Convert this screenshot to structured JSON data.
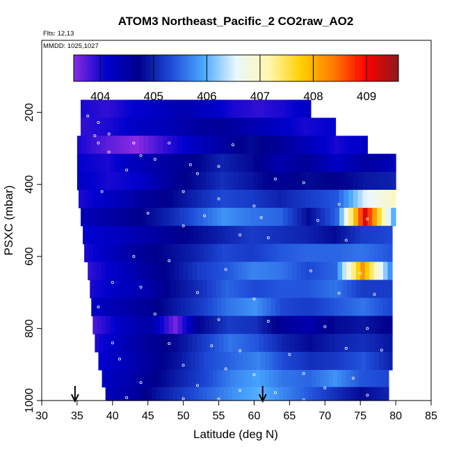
{
  "chart_data": {
    "type": "heatmap",
    "title": "ATOM3 Northeast_Pacific_2 CO2raw_AO2",
    "flights_note": "Flts: 12,13",
    "dates_note": "MMDD: 1025,1027",
    "xlabel": "Latitude (deg N)",
    "ylabel": "PSXC (mbar)",
    "xlim": [
      30,
      85
    ],
    "ylim": [
      1000,
      0
    ],
    "xticks": [
      30,
      35,
      40,
      45,
      50,
      55,
      60,
      65,
      70,
      75,
      80,
      85
    ],
    "yticks": [
      200,
      400,
      600,
      800,
      1000
    ],
    "colorbar": {
      "range": [
        403.5,
        409.6
      ],
      "ticks": [
        404,
        405,
        406,
        407,
        408,
        409
      ],
      "colors": [
        "#8a2be2",
        "#0000cd",
        "#00008b",
        "#1e4bd8",
        "#4aa8ff",
        "#eaf7ff",
        "#fff8b0",
        "#ffd000",
        "#ff7a00",
        "#ff0000",
        "#8b1a1a"
      ]
    },
    "arrows_at_latitude": [
      34.7,
      61.2
    ],
    "bands": [
      {
        "p": 190,
        "lat": [
          35.5,
          68
        ],
        "values": [
          404.0,
          403.9,
          404.1,
          404.2,
          404.4,
          404.2,
          404.0,
          403.9,
          404.0,
          404.2
        ]
      },
      {
        "p": 240,
        "lat": [
          35.5,
          71.5
        ],
        "values": [
          403.9,
          404.0,
          404.2,
          404.3,
          404.5,
          404.6,
          404.4,
          404.2,
          404.0,
          404.1
        ]
      },
      {
        "p": 290,
        "lat": [
          35,
          76
        ],
        "values": [
          404.0,
          403.7,
          403.5,
          403.9,
          404.2,
          404.5,
          404.8,
          404.6,
          404.3,
          404.0,
          404.2
        ]
      },
      {
        "p": 340,
        "lat": [
          35,
          80
        ],
        "values": [
          404.1,
          404.0,
          404.3,
          404.5,
          404.7,
          405.0,
          404.8,
          404.4,
          404.6,
          404.2,
          404.5,
          404.3
        ]
      },
      {
        "p": 390,
        "lat": [
          35,
          80
        ],
        "values": [
          404.2,
          404.0,
          404.1,
          404.5,
          404.8,
          405.1,
          404.9,
          404.6,
          404.8,
          404.7,
          404.9,
          405.0
        ]
      },
      {
        "p": 440,
        "lat": [
          35.2,
          80
        ],
        "values": [
          404.0,
          404.2,
          404.5,
          404.7,
          405.0,
          405.3,
          405.2,
          405.0,
          405.2,
          405.4,
          406.5,
          407.0
        ]
      },
      {
        "p": 490,
        "lat": [
          35.5,
          80
        ],
        "values": [
          404.3,
          404.5,
          404.7,
          405.0,
          405.4,
          405.8,
          405.6,
          405.5,
          404.8,
          405.5,
          409.2,
          406.0
        ]
      },
      {
        "p": 540,
        "lat": [
          35.8,
          79.5
        ],
        "values": [
          404.1,
          404.2,
          404.4,
          404.6,
          404.8,
          405.0,
          405.2,
          405.1,
          405.0,
          404.8,
          405.2,
          405.3
        ]
      },
      {
        "p": 590,
        "lat": [
          36,
          79.5
        ],
        "values": [
          404.0,
          404.3,
          404.6,
          404.8,
          405.0,
          405.3,
          405.2,
          405.4,
          405.5,
          405.5,
          405.6,
          405.4
        ]
      },
      {
        "p": 640,
        "lat": [
          36.5,
          79.5
        ],
        "values": [
          403.9,
          404.2,
          404.5,
          404.8,
          405.2,
          405.4,
          405.7,
          405.6,
          405.3,
          405.5,
          408.2,
          405.8
        ]
      },
      {
        "p": 690,
        "lat": [
          36.8,
          79.5
        ],
        "values": [
          404.0,
          404.2,
          404.4,
          404.8,
          405.1,
          405.5,
          405.3,
          405.4,
          405.4,
          405.6,
          405.2,
          405.2
        ]
      },
      {
        "p": 740,
        "lat": [
          37,
          79.5
        ],
        "values": [
          404.2,
          404.4,
          404.6,
          404.9,
          405.2,
          405.6,
          405.8,
          405.3,
          405.2,
          405.4,
          405.6,
          405.3
        ]
      },
      {
        "p": 790,
        "lat": [
          37.2,
          79.5
        ],
        "values": [
          403.8,
          404.2,
          404.5,
          403.6,
          404.8,
          405.2,
          405.1,
          404.6,
          404.4,
          404.8,
          404.9,
          404.7
        ]
      },
      {
        "p": 840,
        "lat": [
          37.5,
          79.5
        ],
        "values": [
          404.0,
          404.3,
          404.6,
          404.8,
          405.2,
          405.6,
          405.4,
          405.0,
          404.8,
          405.0,
          405.1,
          404.9
        ]
      },
      {
        "p": 890,
        "lat": [
          38,
          79.5
        ],
        "values": [
          404.1,
          404.3,
          404.6,
          404.9,
          405.3,
          405.5,
          405.7,
          405.3,
          405.1,
          405.2,
          405.4,
          405.0
        ]
      },
      {
        "p": 940,
        "lat": [
          38.5,
          79
        ],
        "values": [
          404.2,
          404.4,
          404.7,
          405.0,
          405.3,
          405.7,
          405.9,
          405.6,
          405.5,
          405.8,
          405.4,
          405.3
        ]
      },
      {
        "p": 985,
        "lat": [
          39,
          79
        ],
        "values": [
          404.3,
          404.5,
          404.9,
          405.2,
          405.5,
          405.8,
          406.0,
          405.7,
          405.4,
          405.1,
          404.8,
          405.0
        ]
      }
    ],
    "sample_points": [
      [
        36.5,
        210
      ],
      [
        38,
        228
      ],
      [
        39.5,
        260
      ],
      [
        37.5,
        265
      ],
      [
        38,
        285
      ],
      [
        43,
        285
      ],
      [
        48,
        285
      ],
      [
        57,
        290
      ],
      [
        39.5,
        310
      ],
      [
        44,
        320
      ],
      [
        46,
        330
      ],
      [
        51,
        345
      ],
      [
        55,
        350
      ],
      [
        42,
        360
      ],
      [
        52,
        370
      ],
      [
        63,
        385
      ],
      [
        67,
        395
      ],
      [
        38.5,
        420
      ],
      [
        50,
        420
      ],
      [
        55,
        440
      ],
      [
        60,
        460
      ],
      [
        72,
        455
      ],
      [
        45,
        480
      ],
      [
        53,
        487
      ],
      [
        61,
        492
      ],
      [
        69,
        500
      ],
      [
        76,
        496
      ],
      [
        50,
        515
      ],
      [
        58,
        540
      ],
      [
        62,
        548
      ],
      [
        73,
        555
      ],
      [
        43,
        600
      ],
      [
        48,
        612
      ],
      [
        56,
        636
      ],
      [
        68,
        640
      ],
      [
        75,
        646
      ],
      [
        40,
        672
      ],
      [
        44,
        685
      ],
      [
        52,
        700
      ],
      [
        60,
        718
      ],
      [
        72,
        702
      ],
      [
        77,
        705
      ],
      [
        38,
        740
      ],
      [
        46,
        760
      ],
      [
        55,
        775
      ],
      [
        62,
        780
      ],
      [
        70,
        795
      ],
      [
        76,
        800
      ],
      [
        40,
        840
      ],
      [
        48,
        842
      ],
      [
        54,
        848
      ],
      [
        58,
        862
      ],
      [
        65,
        872
      ],
      [
        73,
        855
      ],
      [
        78,
        860
      ],
      [
        41,
        885
      ],
      [
        50,
        902
      ],
      [
        56,
        912
      ],
      [
        60,
        928
      ],
      [
        67,
        925
      ],
      [
        74,
        938
      ],
      [
        44,
        950
      ],
      [
        52,
        958
      ],
      [
        58,
        972
      ],
      [
        63,
        978
      ],
      [
        70,
        965
      ],
      [
        76,
        985
      ],
      [
        42,
        992
      ],
      [
        50,
        995
      ],
      [
        55,
        996
      ],
      [
        61,
        993
      ],
      [
        67,
        998
      ]
    ]
  }
}
